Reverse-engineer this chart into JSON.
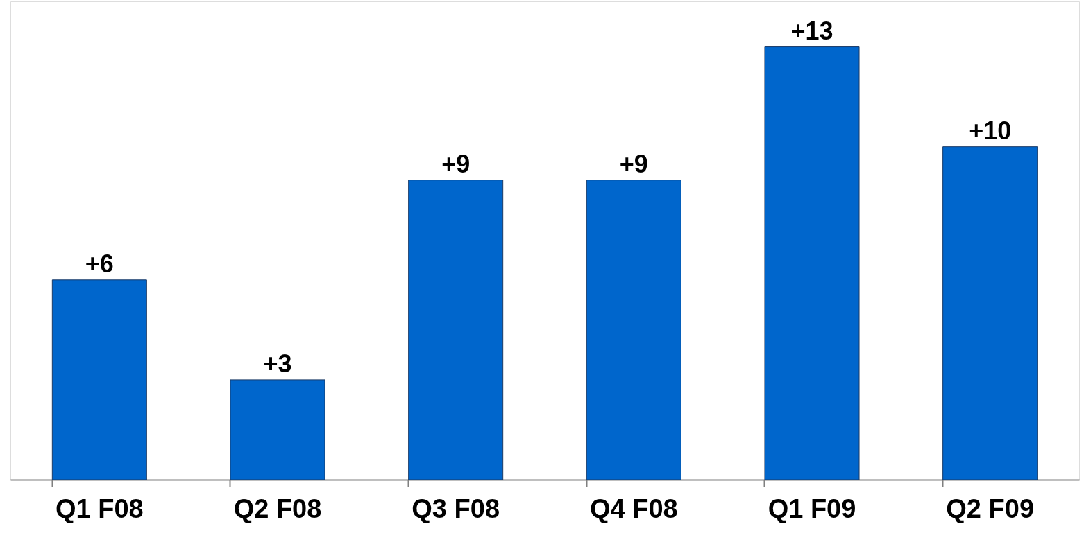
{
  "chart_data": {
    "type": "bar",
    "categories": [
      "Q1 F08",
      "Q2 F08",
      "Q3 F08",
      "Q4 F08",
      "Q1 F09",
      "Q2 F09"
    ],
    "values": [
      6,
      3,
      9,
      9,
      13,
      10
    ],
    "value_labels": [
      "+6",
      "+3",
      "+9",
      "+9",
      "+13",
      "+10"
    ],
    "color": "#0066cc"
  }
}
